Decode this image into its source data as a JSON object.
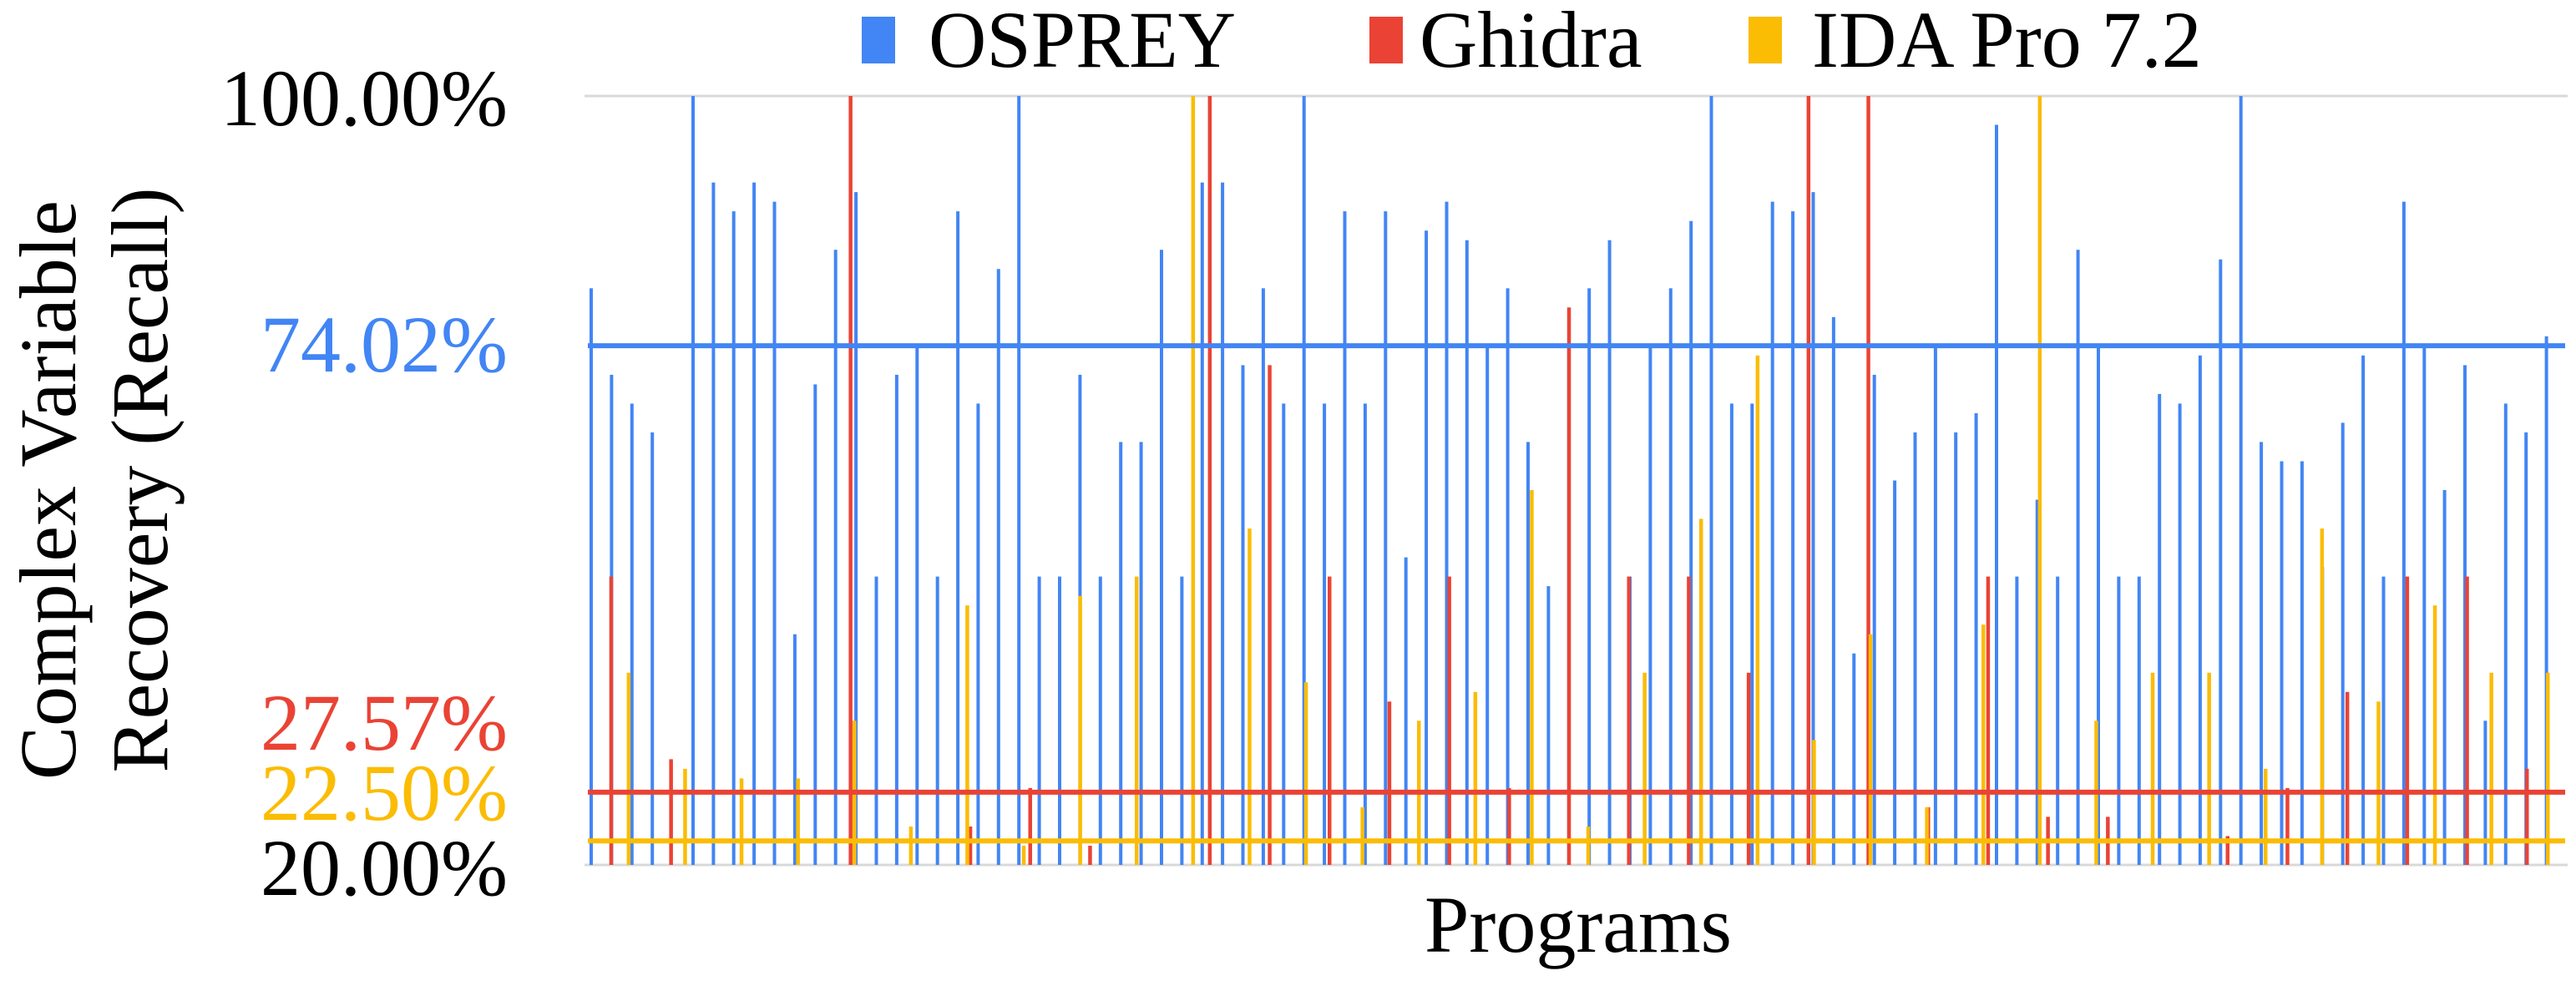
{
  "chart_data": {
    "type": "bar",
    "title": "",
    "xlabel": "Programs",
    "ylabel": "Complex Variable Recovery (Recall)",
    "ylim": [
      20,
      100
    ],
    "legend_position": "top",
    "grid": true,
    "series": [
      {
        "name": "OSPREY",
        "color": "#4285f4",
        "values": [
          80,
          71,
          68,
          65,
          20,
          100,
          91,
          88,
          91,
          89,
          44,
          70,
          84,
          90,
          50,
          71,
          74,
          50,
          88,
          68,
          82,
          100,
          50,
          50,
          71,
          50,
          64,
          64,
          84,
          50,
          91,
          91,
          72,
          80,
          68,
          100,
          68,
          88,
          68,
          88,
          52,
          86,
          89,
          85,
          74,
          80,
          64,
          49,
          74,
          80,
          85,
          50,
          74,
          80,
          87,
          100,
          68,
          68,
          89,
          88,
          90,
          77,
          42,
          71,
          60,
          65,
          74,
          65,
          67,
          97,
          50,
          58,
          50,
          84,
          74,
          50,
          50,
          69,
          68,
          73,
          83,
          100,
          64,
          62,
          62,
          51,
          66,
          73,
          50,
          89,
          74,
          59,
          72,
          35,
          68,
          65,
          75
        ]
      },
      {
        "name": "Ghidra",
        "color": "#ea4335",
        "values": [
          50,
          31,
          20,
          20,
          100,
          20,
          24,
          28,
          22,
          20,
          100,
          72,
          50,
          37,
          50,
          28,
          78,
          50,
          50,
          40,
          100,
          100,
          26,
          50,
          25,
          25,
          20,
          23,
          28,
          38,
          50,
          50,
          30
        ]
      },
      {
        "name": "IDA Pro 7.2",
        "color": "#fbbc04",
        "values": [
          40,
          30,
          29,
          29,
          35,
          24,
          47,
          22,
          48,
          50,
          100,
          55,
          39,
          26,
          35,
          38,
          59,
          24,
          40,
          56,
          73,
          33,
          44,
          26,
          45,
          100,
          35,
          40,
          40,
          30,
          55,
          37,
          47,
          40,
          40
        ]
      }
    ],
    "reference_lines": [
      {
        "series": "OSPREY",
        "value": 74.02,
        "label": "74.02%",
        "color": "#4285f4"
      },
      {
        "series": "Ghidra",
        "value": 27.57,
        "label": "27.57%",
        "color": "#ea4335"
      },
      {
        "series": "IDA Pro 7.2",
        "value": 22.5,
        "label": "22.50%",
        "color": "#fbbc04"
      }
    ],
    "y_tick_labels": [
      "100.00%",
      "20.00%"
    ]
  }
}
